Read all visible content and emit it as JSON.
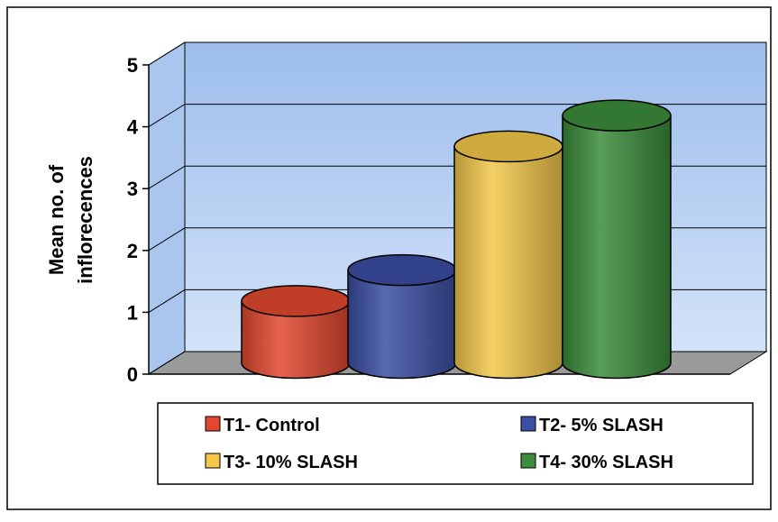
{
  "chart_data": {
    "type": "bar3d",
    "y_label": [
      "Mean no. of",
      "inflorecences"
    ],
    "ylim": [
      0,
      5
    ],
    "yticks": [
      0,
      1,
      2,
      3,
      4,
      5
    ],
    "grid": true,
    "series": [
      {
        "name": "T1- Control",
        "color": "#e2482f",
        "values": [
          1.0
        ]
      },
      {
        "name": "T2- 5% SLASH",
        "color": "#3a4ea3",
        "values": [
          1.5
        ]
      },
      {
        "name": "T3- 10% SLASH",
        "color": "#f3c84a",
        "values": [
          3.5
        ]
      },
      {
        "name": "T4- 30% SLASH",
        "color": "#3b8c3b",
        "values": [
          4.0
        ]
      }
    ]
  }
}
